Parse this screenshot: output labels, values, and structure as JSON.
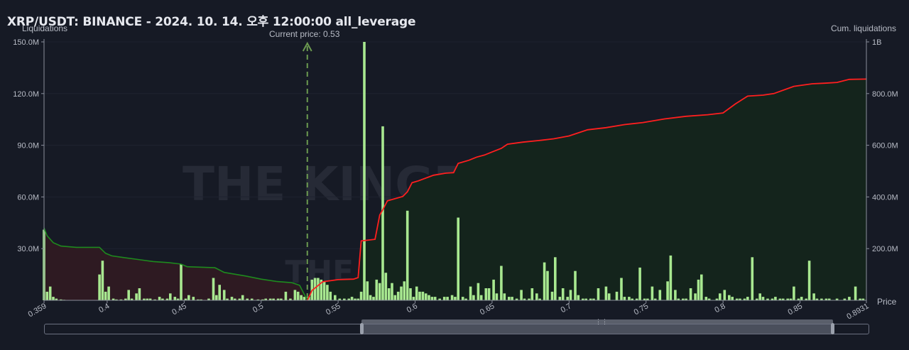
{
  "title": "XRP/USDT: BINANCE - 2024. 10. 14. 오후 12:00:00 all_leverage",
  "watermark": {
    "main": "THE KINGFISHER.io",
    "secondary": "THE KINGFISHER.io"
  },
  "chart_data": {
    "type": "bar",
    "ylabel_left": "Liquidations",
    "ylabel_right": "Cum. liquidations",
    "xlabel": "Price",
    "current_price_label": "Current price: 0.53",
    "current_price": 0.53,
    "xlim": [
      0.359,
      0.8931
    ],
    "ylim_left": [
      0,
      150000000
    ],
    "ylim_right": [
      0,
      1000000000
    ],
    "x_ticks": [
      {
        "value": 0.359,
        "label": "0.359"
      },
      {
        "value": 0.4,
        "label": "0.4"
      },
      {
        "value": 0.45,
        "label": "0.45"
      },
      {
        "value": 0.5,
        "label": "0.5"
      },
      {
        "value": 0.55,
        "label": "0.55"
      },
      {
        "value": 0.6,
        "label": "0.6"
      },
      {
        "value": 0.65,
        "label": "0.65"
      },
      {
        "value": 0.7,
        "label": "0.7"
      },
      {
        "value": 0.75,
        "label": "0.75"
      },
      {
        "value": 0.8,
        "label": "0.8"
      },
      {
        "value": 0.85,
        "label": "0.85"
      },
      {
        "value": 0.8931,
        "label": "0.8931"
      }
    ],
    "y_ticks_left": [
      {
        "value": 30000000,
        "label": "30.0M"
      },
      {
        "value": 60000000,
        "label": "60.0M"
      },
      {
        "value": 90000000,
        "label": "90.0M"
      },
      {
        "value": 120000000,
        "label": "120.0M"
      },
      {
        "value": 150000000,
        "label": "150.0M"
      }
    ],
    "y_ticks_right": [
      {
        "value": 200000000,
        "label": "200.0M"
      },
      {
        "value": 400000000,
        "label": "400.0M"
      },
      {
        "value": 600000000,
        "label": "600.0M"
      },
      {
        "value": 800000000,
        "label": "800.0M"
      },
      {
        "value": 1000000000,
        "label": "1B"
      }
    ],
    "colors": {
      "bar": "#a8e890",
      "long_cum_line": "#1e8a1e",
      "short_cum_line": "#ff1f1f",
      "long_area": "#2e1a22",
      "short_area": "#14241c",
      "current_price": "#6b9a50"
    },
    "bars": [
      [
        0.359,
        41
      ],
      [
        0.361,
        5
      ],
      [
        0.363,
        8
      ],
      [
        0.365,
        2
      ],
      [
        0.367,
        1
      ],
      [
        0.37,
        0.5
      ],
      [
        0.372,
        0.3
      ],
      [
        0.395,
        15
      ],
      [
        0.397,
        23
      ],
      [
        0.399,
        5
      ],
      [
        0.401,
        8
      ],
      [
        0.404,
        1
      ],
      [
        0.406,
        0.5
      ],
      [
        0.409,
        0.5
      ],
      [
        0.412,
        1
      ],
      [
        0.414,
        6
      ],
      [
        0.416,
        1
      ],
      [
        0.419,
        4
      ],
      [
        0.421,
        7
      ],
      [
        0.424,
        1
      ],
      [
        0.426,
        1
      ],
      [
        0.428,
        1
      ],
      [
        0.431,
        0.5
      ],
      [
        0.434,
        2
      ],
      [
        0.436,
        1
      ],
      [
        0.439,
        1
      ],
      [
        0.441,
        4
      ],
      [
        0.444,
        2
      ],
      [
        0.446,
        1
      ],
      [
        0.448,
        21
      ],
      [
        0.451,
        1
      ],
      [
        0.453,
        3
      ],
      [
        0.456,
        2
      ],
      [
        0.459,
        0.5
      ],
      [
        0.461,
        0.5
      ],
      [
        0.466,
        1
      ],
      [
        0.469,
        13
      ],
      [
        0.471,
        3
      ],
      [
        0.473,
        9
      ],
      [
        0.476,
        6
      ],
      [
        0.478,
        1
      ],
      [
        0.481,
        2
      ],
      [
        0.483,
        1
      ],
      [
        0.486,
        1
      ],
      [
        0.488,
        3
      ],
      [
        0.491,
        1
      ],
      [
        0.494,
        1
      ],
      [
        0.498,
        0.5
      ],
      [
        0.501,
        0.5
      ],
      [
        0.503,
        1
      ],
      [
        0.506,
        1
      ],
      [
        0.508,
        1
      ],
      [
        0.511,
        1
      ],
      [
        0.513,
        1
      ],
      [
        0.516,
        5
      ],
      [
        0.519,
        1
      ],
      [
        0.522,
        6
      ],
      [
        0.524,
        5
      ],
      [
        0.526,
        3
      ],
      [
        0.528,
        2
      ],
      [
        0.531,
        2
      ],
      [
        0.533,
        12
      ],
      [
        0.535,
        13
      ],
      [
        0.537,
        13
      ],
      [
        0.539,
        12
      ],
      [
        0.541,
        11
      ],
      [
        0.543,
        9
      ],
      [
        0.545,
        5
      ],
      [
        0.548,
        3
      ],
      [
        0.551,
        1
      ],
      [
        0.554,
        1
      ],
      [
        0.557,
        1
      ],
      [
        0.559,
        2
      ],
      [
        0.561,
        1
      ],
      [
        0.563,
        1
      ],
      [
        0.565,
        5
      ],
      [
        0.567,
        150
      ],
      [
        0.569,
        11
      ],
      [
        0.571,
        3
      ],
      [
        0.573,
        2
      ],
      [
        0.575,
        12
      ],
      [
        0.577,
        10
      ],
      [
        0.579,
        101
      ],
      [
        0.581,
        16
      ],
      [
        0.583,
        7
      ],
      [
        0.585,
        10
      ],
      [
        0.587,
        3
      ],
      [
        0.589,
        5
      ],
      [
        0.591,
        8
      ],
      [
        0.593,
        11
      ],
      [
        0.595,
        52
      ],
      [
        0.597,
        7
      ],
      [
        0.599,
        2
      ],
      [
        0.601,
        8
      ],
      [
        0.603,
        5
      ],
      [
        0.605,
        5
      ],
      [
        0.607,
        4
      ],
      [
        0.609,
        3
      ],
      [
        0.611,
        2
      ],
      [
        0.613,
        2
      ],
      [
        0.616,
        1
      ],
      [
        0.619,
        2
      ],
      [
        0.621,
        2
      ],
      [
        0.624,
        3
      ],
      [
        0.626,
        2
      ],
      [
        0.628,
        48
      ],
      [
        0.631,
        2
      ],
      [
        0.633,
        1
      ],
      [
        0.636,
        8
      ],
      [
        0.638,
        3
      ],
      [
        0.641,
        10
      ],
      [
        0.643,
        3
      ],
      [
        0.646,
        7
      ],
      [
        0.648,
        7
      ],
      [
        0.651,
        12
      ],
      [
        0.653,
        4
      ],
      [
        0.656,
        20
      ],
      [
        0.658,
        4
      ],
      [
        0.661,
        2
      ],
      [
        0.663,
        2
      ],
      [
        0.666,
        1
      ],
      [
        0.669,
        6
      ],
      [
        0.671,
        1
      ],
      [
        0.674,
        1
      ],
      [
        0.676,
        7
      ],
      [
        0.679,
        4
      ],
      [
        0.681,
        1
      ],
      [
        0.684,
        22
      ],
      [
        0.686,
        17
      ],
      [
        0.689,
        5
      ],
      [
        0.691,
        25
      ],
      [
        0.694,
        2
      ],
      [
        0.696,
        7
      ],
      [
        0.699,
        2
      ],
      [
        0.701,
        6
      ],
      [
        0.704,
        17
      ],
      [
        0.706,
        3
      ],
      [
        0.709,
        1
      ],
      [
        0.711,
        1
      ],
      [
        0.714,
        1
      ],
      [
        0.716,
        1
      ],
      [
        0.719,
        7
      ],
      [
        0.724,
        8
      ],
      [
        0.726,
        4
      ],
      [
        0.731,
        5
      ],
      [
        0.734,
        13
      ],
      [
        0.736,
        2
      ],
      [
        0.739,
        2
      ],
      [
        0.741,
        1
      ],
      [
        0.744,
        1
      ],
      [
        0.746,
        19
      ],
      [
        0.749,
        1
      ],
      [
        0.751,
        1
      ],
      [
        0.754,
        8
      ],
      [
        0.756,
        1
      ],
      [
        0.759,
        6
      ],
      [
        0.764,
        11
      ],
      [
        0.766,
        26
      ],
      [
        0.769,
        6
      ],
      [
        0.771,
        1
      ],
      [
        0.774,
        1
      ],
      [
        0.776,
        1
      ],
      [
        0.779,
        7
      ],
      [
        0.782,
        4
      ],
      [
        0.784,
        12
      ],
      [
        0.786,
        15
      ],
      [
        0.789,
        2
      ],
      [
        0.791,
        1
      ],
      [
        0.796,
        1
      ],
      [
        0.798,
        4
      ],
      [
        0.801,
        6
      ],
      [
        0.804,
        3
      ],
      [
        0.806,
        2
      ],
      [
        0.809,
        1
      ],
      [
        0.811,
        1
      ],
      [
        0.814,
        1
      ],
      [
        0.816,
        2
      ],
      [
        0.819,
        25
      ],
      [
        0.822,
        1
      ],
      [
        0.824,
        4
      ],
      [
        0.826,
        2
      ],
      [
        0.829,
        1
      ],
      [
        0.832,
        1
      ],
      [
        0.834,
        2
      ],
      [
        0.837,
        1
      ],
      [
        0.839,
        1
      ],
      [
        0.842,
        1
      ],
      [
        0.844,
        1
      ],
      [
        0.846,
        8
      ],
      [
        0.849,
        1
      ],
      [
        0.851,
        2
      ],
      [
        0.854,
        1
      ],
      [
        0.856,
        23
      ],
      [
        0.859,
        4
      ],
      [
        0.861,
        1
      ],
      [
        0.864,
        1
      ],
      [
        0.867,
        1
      ],
      [
        0.869,
        1
      ],
      [
        0.874,
        1
      ],
      [
        0.879,
        1
      ],
      [
        0.882,
        2
      ],
      [
        0.886,
        8
      ],
      [
        0.889,
        1
      ],
      [
        0.891,
        1
      ]
    ],
    "long_cum": [
      [
        0.359,
        280
      ],
      [
        0.361,
        250
      ],
      [
        0.365,
        223
      ],
      [
        0.37,
        210
      ],
      [
        0.38,
        205
      ],
      [
        0.39,
        205
      ],
      [
        0.395,
        205
      ],
      [
        0.399,
        182
      ],
      [
        0.403,
        172
      ],
      [
        0.41,
        166
      ],
      [
        0.42,
        158
      ],
      [
        0.43,
        150
      ],
      [
        0.44,
        146
      ],
      [
        0.448,
        140
      ],
      [
        0.452,
        130
      ],
      [
        0.47,
        126
      ],
      [
        0.476,
        108
      ],
      [
        0.49,
        94
      ],
      [
        0.5,
        82
      ],
      [
        0.51,
        73
      ],
      [
        0.52,
        68
      ],
      [
        0.525,
        58
      ],
      [
        0.53,
        0
      ]
    ],
    "short_cum": [
      [
        0.53,
        0
      ],
      [
        0.533,
        38
      ],
      [
        0.54,
        72
      ],
      [
        0.55,
        80
      ],
      [
        0.56,
        82
      ],
      [
        0.563,
        88
      ],
      [
        0.565,
        230
      ],
      [
        0.574,
        236
      ],
      [
        0.577,
        330
      ],
      [
        0.579,
        350
      ],
      [
        0.582,
        385
      ],
      [
        0.592,
        402
      ],
      [
        0.595,
        420
      ],
      [
        0.598,
        455
      ],
      [
        0.602,
        462
      ],
      [
        0.612,
        484
      ],
      [
        0.62,
        492
      ],
      [
        0.625,
        494
      ],
      [
        0.628,
        530
      ],
      [
        0.635,
        542
      ],
      [
        0.64,
        554
      ],
      [
        0.645,
        562
      ],
      [
        0.65,
        574
      ],
      [
        0.656,
        588
      ],
      [
        0.66,
        604
      ],
      [
        0.67,
        612
      ],
      [
        0.68,
        618
      ],
      [
        0.69,
        625
      ],
      [
        0.7,
        636
      ],
      [
        0.712,
        660
      ],
      [
        0.724,
        668
      ],
      [
        0.736,
        680
      ],
      [
        0.748,
        688
      ],
      [
        0.762,
        702
      ],
      [
        0.776,
        712
      ],
      [
        0.79,
        718
      ],
      [
        0.8,
        725
      ],
      [
        0.808,
        760
      ],
      [
        0.816,
        790
      ],
      [
        0.826,
        794
      ],
      [
        0.833,
        800
      ],
      [
        0.846,
        828
      ],
      [
        0.858,
        838
      ],
      [
        0.866,
        840
      ],
      [
        0.874,
        843
      ],
      [
        0.882,
        855
      ],
      [
        0.893,
        856
      ]
    ]
  }
}
